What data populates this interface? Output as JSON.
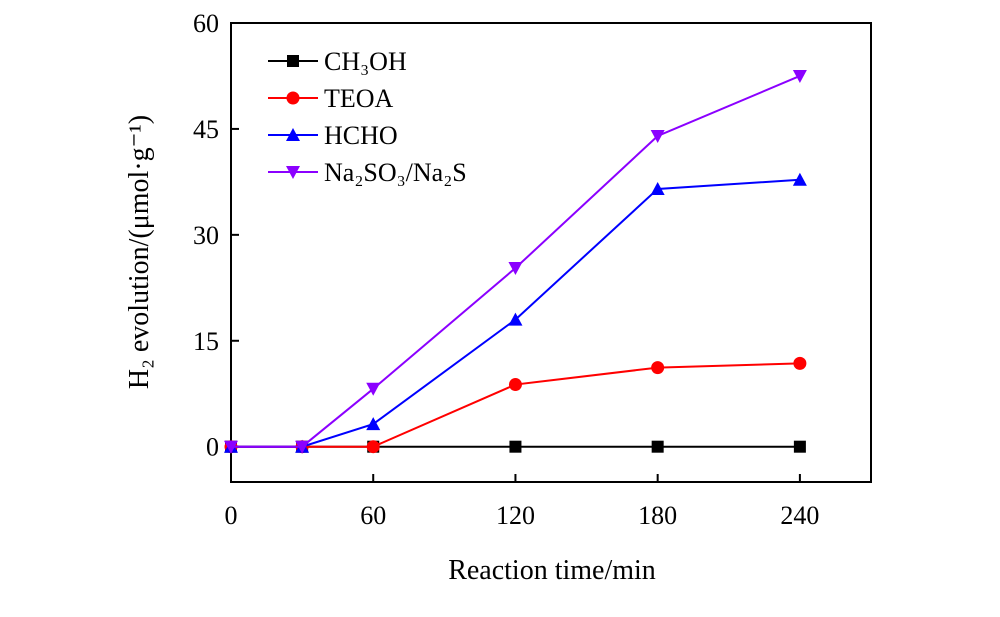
{
  "chart_data": {
    "type": "line",
    "xlabel": "Reaction time/min",
    "ylabel": "H₂ evolution/(μmol·g⁻¹)",
    "xlim": [
      0,
      270
    ],
    "ylim": [
      -5,
      60
    ],
    "x_ticks": [
      0,
      60,
      120,
      180,
      240
    ],
    "y_ticks": [
      0,
      15,
      30,
      45,
      60
    ],
    "grid": false,
    "legend_position": "top-left",
    "series": [
      {
        "name": "CH₃OH",
        "color": "#000000",
        "marker": "square",
        "x": [
          0,
          30,
          60,
          120,
          180,
          240
        ],
        "y": [
          0,
          0,
          0,
          0,
          0,
          0
        ]
      },
      {
        "name": "TEOA",
        "color": "#ff0000",
        "marker": "circle",
        "x": [
          0,
          30,
          60,
          120,
          180,
          240
        ],
        "y": [
          0,
          0,
          0,
          8.8,
          11.2,
          11.8
        ]
      },
      {
        "name": "HCHO",
        "color": "#0000ff",
        "marker": "triangle-up",
        "x": [
          0,
          30,
          60,
          120,
          180,
          240
        ],
        "y": [
          0,
          0,
          3.2,
          18.0,
          36.5,
          37.8
        ]
      },
      {
        "name": "Na₂SO₃/Na₂S",
        "color": "#8b00ff",
        "marker": "triangle-down",
        "x": [
          0,
          30,
          60,
          120,
          180,
          240
        ],
        "y": [
          0,
          0,
          8.2,
          25.3,
          44.0,
          52.5
        ]
      }
    ]
  }
}
